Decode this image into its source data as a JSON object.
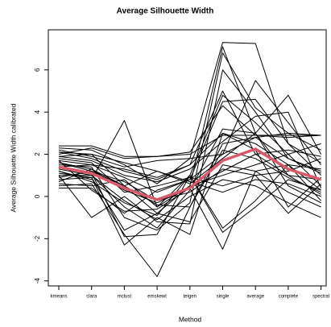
{
  "chart_data": {
    "type": "line",
    "title": "Average Silhouette Width",
    "x_label": "Method",
    "y_label": "Average Silhouette Width calibrated",
    "categories": [
      "kmeans",
      "clara",
      "mclust",
      "emskewt",
      "teigen",
      "single",
      "average",
      "complete",
      "spectral"
    ],
    "ylim": [
      -4.24,
      7.9
    ],
    "yticks": [
      -4,
      -2,
      0,
      2,
      4,
      6
    ],
    "series": [
      {
        "color": "#000000",
        "linewidth": 1,
        "values": [
          2.3,
          2.2,
          1.5,
          0.6,
          1.8,
          7.3,
          7.25,
          2.5,
          1.0
        ]
      },
      {
        "color": "#000000",
        "linewidth": 1,
        "values": [
          1.9,
          2.0,
          0.5,
          -0.8,
          0.5,
          7.1,
          3.0,
          4.8,
          2.0
        ]
      },
      {
        "color": "#000000",
        "linewidth": 1,
        "values": [
          1.2,
          0.8,
          3.6,
          -0.5,
          1.0,
          4.8,
          3.5,
          2.0,
          0.5
        ]
      },
      {
        "color": "#000000",
        "linewidth": 1,
        "values": [
          0.5,
          0.6,
          -1.8,
          -3.8,
          -0.5,
          2.5,
          2.8,
          3.0,
          2.9
        ]
      },
      {
        "color": "#000000",
        "linewidth": 1,
        "values": [
          1.6,
          1.3,
          0.3,
          -0.3,
          0.4,
          -2.5,
          1.2,
          1.5,
          0.3
        ]
      },
      {
        "color": "#000000",
        "linewidth": 1,
        "values": [
          2.1,
          1.8,
          1.2,
          0.8,
          1.5,
          5.0,
          2.0,
          1.0,
          0.1
        ]
      },
      {
        "color": "#000000",
        "linewidth": 1,
        "values": [
          1.0,
          -1.0,
          0.0,
          -1.2,
          -1.3,
          6.0,
          4.0,
          1.8,
          1.2
        ]
      },
      {
        "color": "#000000",
        "linewidth": 1,
        "values": [
          1.4,
          1.1,
          -1.9,
          -1.8,
          1.0,
          -1.7,
          -0.5,
          0.8,
          0.3
        ]
      },
      {
        "color": "#000000",
        "linewidth": 1,
        "values": [
          0.8,
          0.9,
          -2.3,
          -1.0,
          -1.8,
          3.0,
          2.2,
          -0.5,
          0.9
        ]
      },
      {
        "color": "#000000",
        "linewidth": 1,
        "values": [
          2.0,
          2.3,
          1.8,
          1.9,
          2.1,
          4.3,
          2.9,
          2.8,
          2.9
        ]
      },
      {
        "color": "#000000",
        "linewidth": 1,
        "values": [
          1.7,
          1.5,
          0.9,
          0.2,
          0.8,
          2.0,
          5.5,
          3.5,
          1.5
        ]
      },
      {
        "color": "#000000",
        "linewidth": 1,
        "values": [
          1.3,
          1.0,
          -0.5,
          -1.5,
          0.3,
          3.2,
          3.0,
          0.5,
          -0.3
        ]
      },
      {
        "color": "#000000",
        "linewidth": 1,
        "values": [
          0.6,
          0.5,
          0.8,
          -0.5,
          0.5,
          1.0,
          1.5,
          2.0,
          2.5
        ]
      },
      {
        "color": "#000000",
        "linewidth": 1,
        "values": [
          1.8,
          1.6,
          0.2,
          0.5,
          0.9,
          0.5,
          1.0,
          1.2,
          1.8
        ]
      },
      {
        "color": "#000000",
        "linewidth": 1,
        "values": [
          2.2,
          1.9,
          1.4,
          1.7,
          1.8,
          2.0,
          2.8,
          1.8,
          1.1
        ]
      },
      {
        "color": "#000000",
        "linewidth": 1,
        "values": [
          1.5,
          1.4,
          -1.0,
          -1.6,
          -0.3,
          6.8,
          4.2,
          3.0,
          2.2
        ]
      },
      {
        "color": "#000000",
        "linewidth": 1,
        "values": [
          1.1,
          0.9,
          -1.6,
          -0.8,
          -1.2,
          1.5,
          1.2,
          0.2,
          -0.5
        ]
      },
      {
        "color": "#000000",
        "linewidth": 1,
        "values": [
          0.9,
          1.2,
          0.7,
          -0.2,
          0.2,
          1.3,
          1.0,
          -0.8,
          0.6
        ]
      },
      {
        "color": "#000000",
        "linewidth": 1,
        "values": [
          1.9,
          1.7,
          1.0,
          0.7,
          1.3,
          2.6,
          3.8,
          4.0,
          0.4
        ]
      },
      {
        "color": "#000000",
        "linewidth": 1,
        "values": [
          1.2,
          0.7,
          -0.3,
          -0.9,
          1.0,
          -1.5,
          -0.2,
          1.5,
          -0.2
        ]
      },
      {
        "color": "#000000",
        "linewidth": 1,
        "values": [
          2.4,
          2.4,
          1.9,
          1.9,
          2.0,
          2.9,
          2.9,
          2.9,
          2.9
        ]
      },
      {
        "color": "#000000",
        "linewidth": 1,
        "values": [
          0.4,
          0.4,
          -0.8,
          0.3,
          0.8,
          4.5,
          4.6,
          2.5,
          1.6
        ]
      },
      {
        "color": "#000000",
        "linewidth": 1,
        "values": [
          1.6,
          1.2,
          0.5,
          1.2,
          0.6,
          1.8,
          3.0,
          1.0,
          0.8
        ]
      },
      {
        "color": "#000000",
        "linewidth": 1,
        "values": [
          1.0,
          1.0,
          -0.2,
          -1.1,
          0.0,
          0.8,
          0.5,
          -0.3,
          -1.0
        ]
      },
      {
        "color": "#000000",
        "linewidth": 1,
        "values": [
          1.4,
          1.5,
          1.3,
          0.9,
          1.5,
          3.0,
          2.5,
          1.5,
          1.3
        ]
      },
      {
        "color": "#000000",
        "linewidth": 1,
        "values": [
          0.7,
          1.3,
          0.5,
          -0.4,
          -0.5,
          2.2,
          1.8,
          0.9,
          0.2
        ]
      },
      {
        "color": "#000000",
        "linewidth": 1,
        "values": [
          1.7,
          0.3,
          -0.7,
          -0.6,
          0.4,
          1.2,
          2.0,
          2.2,
          1.9
        ]
      },
      {
        "color": "#000000",
        "linewidth": 1,
        "values": [
          2.1,
          2.0,
          1.6,
          1.2,
          0.7,
          0.2,
          0.8,
          0.6,
          0.0
        ]
      },
      {
        "color": "#d9586a",
        "linewidth": 3.5,
        "values": [
          1.4,
          1.1,
          0.4,
          -0.15,
          0.4,
          1.7,
          2.25,
          1.3,
          0.8
        ]
      }
    ]
  }
}
